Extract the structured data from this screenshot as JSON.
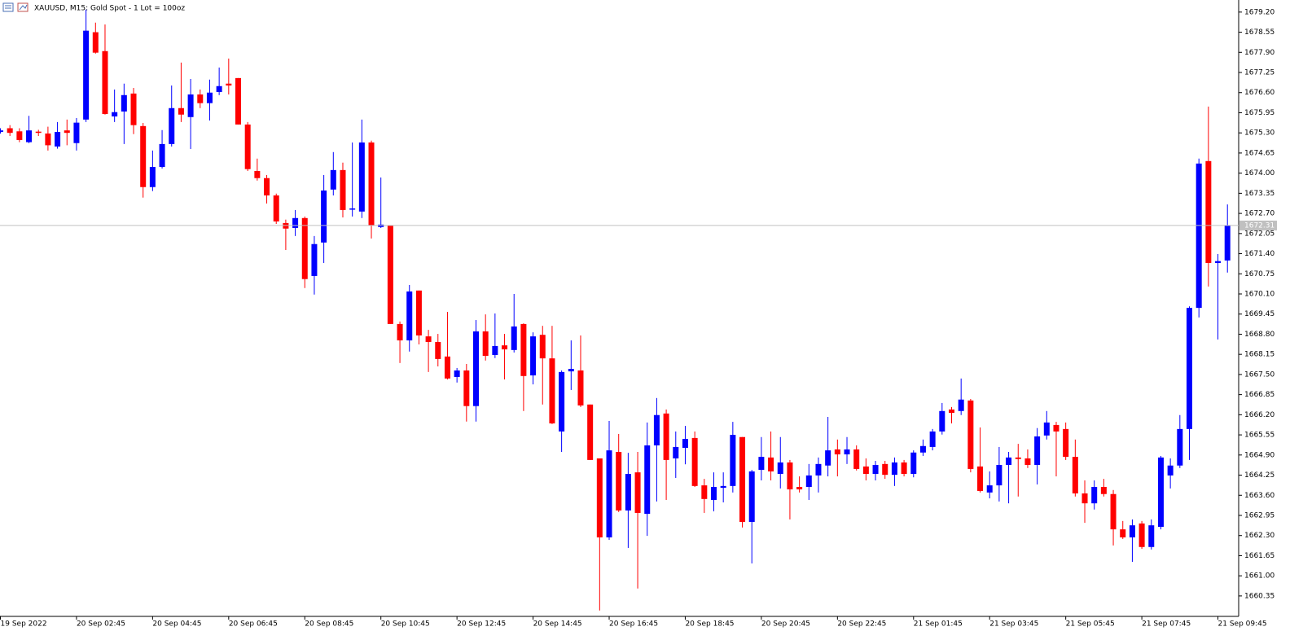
{
  "chart_data": {
    "type": "candlestick",
    "title": "XAUUSD, M15:  Gold  Spot - 1 Lot = 100oz",
    "categories": [
      "19 Sep 2022",
      null,
      null,
      null,
      null,
      null,
      null,
      null,
      "20 Sep 02:45",
      null,
      null,
      null,
      null,
      null,
      null,
      null,
      "20 Sep 04:45",
      null,
      null,
      null,
      null,
      null,
      null,
      null,
      "20 Sep 06:45",
      null,
      null,
      null,
      null,
      null,
      null,
      null,
      "20 Sep 08:45",
      null,
      null,
      null,
      null,
      null,
      null,
      null,
      "20 Sep 10:45",
      null,
      null,
      null,
      null,
      null,
      null,
      null,
      "20 Sep 12:45",
      null,
      null,
      null,
      null,
      null,
      null,
      null,
      "20 Sep 14:45",
      null,
      null,
      null,
      null,
      null,
      null,
      null,
      "20 Sep 16:45",
      null,
      null,
      null,
      null,
      null,
      null,
      null,
      "20 Sep 18:45",
      null,
      null,
      null,
      null,
      null,
      null,
      null,
      "20 Sep 20:45",
      null,
      null,
      null,
      null,
      null,
      null,
      null,
      "20 Sep 22:45",
      null,
      null,
      null,
      null,
      null,
      null,
      null,
      "21 Sep 01:45",
      null,
      null,
      null,
      null,
      null,
      null,
      null,
      "21 Sep 03:45",
      null,
      null,
      null,
      null,
      null,
      null,
      null,
      "21 Sep 05:45",
      null,
      null,
      null,
      null,
      null,
      null,
      null,
      "21 Sep 07:45",
      null,
      null,
      null,
      null,
      null,
      null,
      null,
      "21 Sep 09:45",
      null
    ],
    "open": [
      1675.33,
      1675.45,
      1675.35,
      1675.0,
      1675.34,
      1675.28,
      1674.86,
      1675.38,
      1674.97,
      1675.73,
      1678.55,
      1677.94,
      1675.83,
      1675.99,
      1676.57,
      1675.52,
      1673.55,
      1674.2,
      1674.94,
      1676.1,
      1675.81,
      1676.54,
      1676.26,
      1676.62,
      1676.89,
      1677.07,
      1675.57,
      1674.07,
      1673.84,
      1673.28,
      1672.39,
      1672.23,
      1672.55,
      1670.68,
      1671.76,
      1673.47,
      1674.1,
      1672.83,
      1672.76,
      1674.99,
      1672.26,
      1672.31,
      1669.13,
      1668.6,
      1670.21,
      1668.73,
      1668.55,
      1668.08,
      1667.42,
      1667.63,
      1666.48,
      1668.89,
      1668.13,
      1668.44,
      1668.29,
      1669.13,
      1667.47,
      1668.78,
      1668.02,
      1665.66,
      1667.6,
      1667.63,
      1666.53,
      1664.79,
      1662.24,
      1665.0,
      1663.11,
      1664.34,
      1663.0,
      1665.21,
      1666.24,
      1664.79,
      1665.13,
      1665.45,
      1663.92,
      1663.45,
      1663.84,
      1663.9,
      1665.48,
      1662.74,
      1664.42,
      1664.82,
      1664.29,
      1664.66,
      1663.87,
      1663.87,
      1664.24,
      1664.56,
      1665.08,
      1664.92,
      1665.08,
      1664.53,
      1664.29,
      1664.61,
      1664.26,
      1664.66,
      1664.29,
      1664.98,
      1665.16,
      1665.66,
      1666.37,
      1666.32,
      1666.66,
      1664.53,
      1663.69,
      1663.92,
      1664.58,
      1664.82,
      1664.79,
      1664.58,
      1665.53,
      1665.87,
      1665.74,
      1664.84,
      1663.66,
      1663.34,
      1663.87,
      1663.64,
      1662.5,
      1662.24,
      1662.69,
      1661.93,
      1662.58,
      1664.24,
      1664.56,
      1665.74,
      1669.65,
      1674.39,
      1671.1,
      1671.18
    ],
    "high": [
      1675.45,
      1675.55,
      1675.45,
      1675.85,
      1675.4,
      1675.5,
      1675.65,
      1675.73,
      1675.78,
      1679.28,
      1678.86,
      1678.8,
      1676.7,
      1676.89,
      1676.75,
      1675.62,
      1674.73,
      1675.39,
      1676.83,
      1677.57,
      1677.04,
      1676.7,
      1677.02,
      1677.41,
      1677.7,
      1677.07,
      1675.65,
      1674.47,
      1673.94,
      1673.34,
      1672.5,
      1672.81,
      1672.6,
      1671.97,
      1673.94,
      1674.68,
      1674.34,
      1674.99,
      1675.73,
      1675.05,
      1673.86,
      1672.31,
      1669.21,
      1670.39,
      1670.21,
      1668.94,
      1668.81,
      1669.52,
      1667.71,
      1667.84,
      1669.26,
      1669.44,
      1669.47,
      1668.81,
      1670.1,
      1669.15,
      1668.86,
      1669.07,
      1669.07,
      1667.63,
      1668.6,
      1668.76,
      1666.53,
      1664.79,
      1666.0,
      1665.58,
      1664.97,
      1665.0,
      1665.95,
      1666.74,
      1666.37,
      1665.66,
      1665.84,
      1665.66,
      1664.13,
      1664.34,
      1664.34,
      1665.97,
      1665.48,
      1664.42,
      1665.48,
      1665.66,
      1665.48,
      1664.74,
      1664.21,
      1664.61,
      1664.82,
      1666.13,
      1665.4,
      1665.48,
      1665.21,
      1664.79,
      1664.71,
      1664.71,
      1664.82,
      1664.74,
      1665.05,
      1665.4,
      1665.74,
      1666.58,
      1666.45,
      1667.37,
      1666.71,
      1665.79,
      1664.37,
      1665.16,
      1665.0,
      1665.26,
      1665.08,
      1665.77,
      1666.32,
      1665.97,
      1665.95,
      1665.4,
      1664.08,
      1664.08,
      1664.13,
      1663.77,
      1662.77,
      1662.82,
      1662.77,
      1662.82,
      1664.87,
      1664.79,
      1666.19,
      1669.7,
      1674.47,
      1676.15,
      1671.39,
      1672.99
    ],
    "low": [
      1675.28,
      1675.2,
      1675.0,
      1674.97,
      1675.2,
      1674.73,
      1674.79,
      1674.9,
      1674.73,
      1675.65,
      1677.86,
      1675.89,
      1675.65,
      1674.94,
      1675.26,
      1673.21,
      1673.42,
      1674.15,
      1674.86,
      1675.65,
      1674.78,
      1676.1,
      1675.7,
      1676.52,
      1676.54,
      1675.57,
      1674.07,
      1673.76,
      1673.02,
      1672.36,
      1671.52,
      1671.97,
      1670.29,
      1670.08,
      1671.1,
      1673.28,
      1672.57,
      1672.6,
      1672.55,
      1671.89,
      1672.23,
      1669.13,
      1667.87,
      1668.24,
      1668.47,
      1667.58,
      1667.76,
      1667.34,
      1667.24,
      1665.98,
      1665.98,
      1667.95,
      1668.03,
      1667.34,
      1668.21,
      1666.32,
      1667.18,
      1666.53,
      1665.9,
      1665.0,
      1667.0,
      1666.45,
      1664.74,
      1659.88,
      1662.16,
      1663.06,
      1661.9,
      1660.59,
      1662.29,
      1663.4,
      1663.45,
      1664.16,
      1664.6,
      1663.87,
      1663.03,
      1663.08,
      1663.37,
      1663.69,
      1662.56,
      1661.4,
      1664.08,
      1664.08,
      1663.82,
      1662.82,
      1663.69,
      1663.45,
      1663.69,
      1664.21,
      1664.21,
      1664.61,
      1664.4,
      1664.08,
      1664.08,
      1664.13,
      1663.9,
      1664.21,
      1664.18,
      1664.87,
      1665.05,
      1665.56,
      1665.92,
      1666.19,
      1664.34,
      1663.69,
      1663.5,
      1663.4,
      1663.34,
      1663.56,
      1664.48,
      1663.95,
      1665.4,
      1664.21,
      1664.74,
      1663.56,
      1662.71,
      1663.14,
      1663.56,
      1661.98,
      1662.19,
      1661.45,
      1661.87,
      1661.85,
      1662.5,
      1663.82,
      1664.48,
      1664.74,
      1669.34,
      1670.34,
      1668.63,
      1670.79
    ],
    "close": [
      1675.38,
      1675.3,
      1675.07,
      1675.38,
      1675.3,
      1674.9,
      1675.33,
      1675.3,
      1675.63,
      1678.6,
      1677.89,
      1675.91,
      1675.97,
      1676.52,
      1675.55,
      1673.55,
      1674.2,
      1674.94,
      1676.1,
      1675.89,
      1676.54,
      1676.26,
      1676.6,
      1676.81,
      1676.83,
      1675.57,
      1674.13,
      1673.84,
      1673.28,
      1672.44,
      1672.21,
      1672.55,
      1670.58,
      1671.71,
      1673.44,
      1674.1,
      1672.81,
      1672.86,
      1674.99,
      1672.31,
      1672.34,
      1669.13,
      1668.6,
      1670.18,
      1668.76,
      1668.55,
      1668.0,
      1667.37,
      1667.63,
      1666.48,
      1668.89,
      1668.1,
      1668.42,
      1668.31,
      1669.05,
      1667.45,
      1668.73,
      1668.02,
      1665.92,
      1667.58,
      1667.68,
      1666.5,
      1664.74,
      1662.24,
      1665.05,
      1663.11,
      1664.29,
      1663.03,
      1665.21,
      1666.19,
      1664.74,
      1665.16,
      1665.42,
      1663.9,
      1663.48,
      1663.87,
      1663.9,
      1665.55,
      1662.74,
      1664.37,
      1664.84,
      1664.37,
      1664.66,
      1663.79,
      1663.79,
      1664.24,
      1664.61,
      1665.05,
      1664.92,
      1665.08,
      1664.45,
      1664.29,
      1664.58,
      1664.26,
      1664.66,
      1664.29,
      1664.98,
      1665.19,
      1665.66,
      1666.32,
      1666.26,
      1666.69,
      1664.45,
      1663.74,
      1663.92,
      1664.58,
      1664.82,
      1664.77,
      1664.58,
      1665.5,
      1665.95,
      1665.66,
      1664.84,
      1663.66,
      1663.34,
      1663.87,
      1663.64,
      1662.5,
      1662.24,
      1662.63,
      1661.93,
      1662.63,
      1664.82,
      1664.56,
      1665.74,
      1669.65,
      1674.31,
      1671.1,
      1671.16,
      1672.31
    ],
    "up_color": "#0000ff",
    "down_color": "#ff0000",
    "last_price": 1672.31,
    "ylim": [
      1659.69,
      1679.59
    ],
    "yticks": [
      {
        "value": 1679.2,
        "label": "1679.20"
      },
      1678.55,
      {
        "value": 1677.9,
        "label": "1677.90"
      },
      1677.25,
      {
        "value": 1676.6,
        "label": "1676.60"
      },
      1675.95,
      {
        "value": 1675.3,
        "label": "1675.30"
      },
      1674.65,
      {
        "value": 1674,
        "label": "1674.00"
      },
      1673.35,
      {
        "value": 1672.7,
        "label": "1672.70"
      },
      1672.05,
      {
        "value": 1671.4,
        "label": "1671.40"
      },
      1670.75,
      {
        "value": 1670.1,
        "label": "1670.10"
      },
      1669.45,
      {
        "value": 1668.8,
        "label": "1668.80"
      },
      1668.15,
      {
        "value": 1667.5,
        "label": "1667.50"
      },
      1666.85,
      {
        "value": 1666.2,
        "label": "1666.20"
      },
      1665.55,
      {
        "value": 1664.9,
        "label": "1664.90"
      },
      1664.25,
      {
        "value": 1663.6,
        "label": "1663.60"
      },
      1662.95,
      {
        "value": 1662.3,
        "label": "1662.30"
      },
      1661.65,
      {
        "value": 1661,
        "label": "1661.00"
      },
      1660.35
    ],
    "grid": false
  }
}
